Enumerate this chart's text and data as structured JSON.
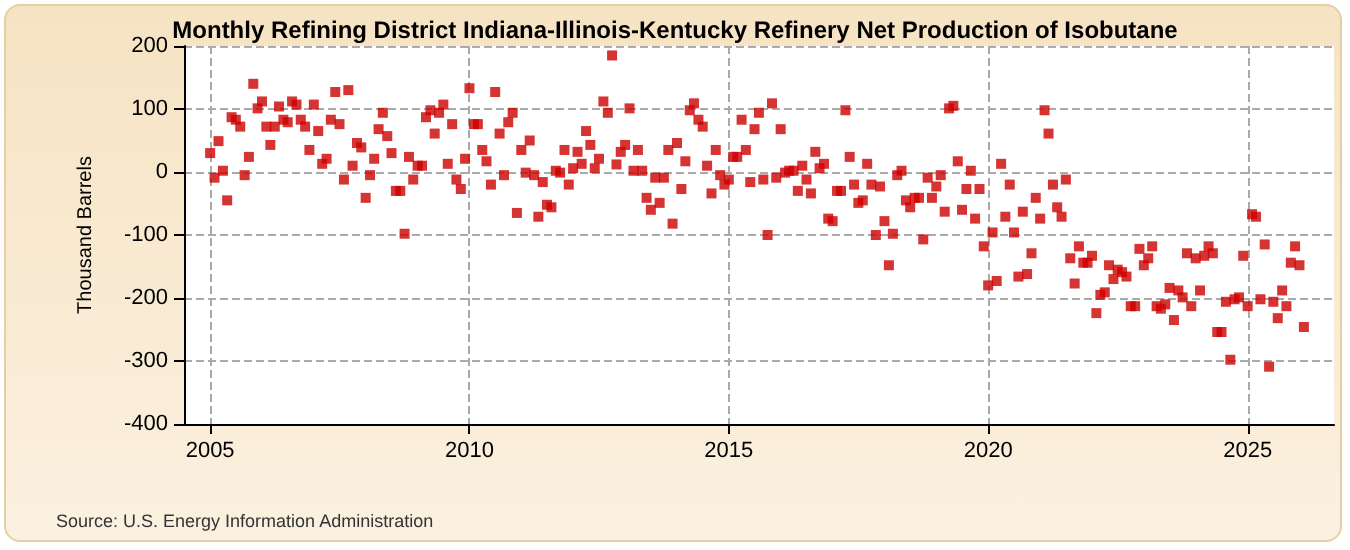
{
  "chart_data": {
    "type": "scatter",
    "title": "Monthly Refining District Indiana-Illinois-Kentucky Refinery Net Production of Isobutane",
    "ylabel": "Thousand Barrels",
    "annotations": [
      "Source: U.S. Energy Information Administration"
    ],
    "xlim": [
      "2004-07",
      "2026-09"
    ],
    "xticks": [
      "2005",
      "2010",
      "2015",
      "2020",
      "2025"
    ],
    "ylim": [
      -400,
      200
    ],
    "yticks": [
      -400,
      -300,
      -200,
      -100,
      0,
      100,
      200
    ],
    "grid": true,
    "marker": "square",
    "x": [
      "2005-01",
      "2005-02",
      "2005-03",
      "2005-04",
      "2005-05",
      "2005-06",
      "2005-07",
      "2005-08",
      "2005-09",
      "2005-10",
      "2005-11",
      "2005-12",
      "2006-01",
      "2006-02",
      "2006-03",
      "2006-04",
      "2006-05",
      "2006-06",
      "2006-07",
      "2006-08",
      "2006-09",
      "2006-10",
      "2006-11",
      "2006-12",
      "2007-01",
      "2007-02",
      "2007-03",
      "2007-04",
      "2007-05",
      "2007-06",
      "2007-07",
      "2007-08",
      "2007-09",
      "2007-10",
      "2007-11",
      "2007-12",
      "2008-01",
      "2008-02",
      "2008-03",
      "2008-04",
      "2008-05",
      "2008-06",
      "2008-07",
      "2008-08",
      "2008-09",
      "2008-10",
      "2008-11",
      "2008-12",
      "2009-01",
      "2009-02",
      "2009-03",
      "2009-04",
      "2009-05",
      "2009-06",
      "2009-07",
      "2009-08",
      "2009-09",
      "2009-10",
      "2009-11",
      "2009-12",
      "2010-01",
      "2010-02",
      "2010-03",
      "2010-04",
      "2010-05",
      "2010-06",
      "2010-07",
      "2010-08",
      "2010-09",
      "2010-10",
      "2010-11",
      "2010-12",
      "2011-01",
      "2011-02",
      "2011-03",
      "2011-04",
      "2011-05",
      "2011-06",
      "2011-07",
      "2011-08",
      "2011-09",
      "2011-10",
      "2011-11",
      "2011-12",
      "2012-01",
      "2012-02",
      "2012-03",
      "2012-04",
      "2012-05",
      "2012-06",
      "2012-07",
      "2012-08",
      "2012-09",
      "2012-10",
      "2012-11",
      "2012-12",
      "2013-01",
      "2013-02",
      "2013-03",
      "2013-04",
      "2013-05",
      "2013-06",
      "2013-07",
      "2013-08",
      "2013-09",
      "2013-10",
      "2013-11",
      "2013-12",
      "2014-01",
      "2014-02",
      "2014-03",
      "2014-04",
      "2014-05",
      "2014-06",
      "2014-07",
      "2014-08",
      "2014-09",
      "2014-10",
      "2014-11",
      "2014-12",
      "2015-01",
      "2015-02",
      "2015-03",
      "2015-04",
      "2015-05",
      "2015-06",
      "2015-07",
      "2015-08",
      "2015-09",
      "2015-10",
      "2015-11",
      "2015-12",
      "2016-01",
      "2016-02",
      "2016-03",
      "2016-04",
      "2016-05",
      "2016-06",
      "2016-07",
      "2016-08",
      "2016-09",
      "2016-10",
      "2016-11",
      "2016-12",
      "2017-01",
      "2017-02",
      "2017-03",
      "2017-04",
      "2017-05",
      "2017-06",
      "2017-07",
      "2017-08",
      "2017-09",
      "2017-10",
      "2017-11",
      "2017-12",
      "2018-01",
      "2018-02",
      "2018-03",
      "2018-04",
      "2018-05",
      "2018-06",
      "2018-07",
      "2018-08",
      "2018-09",
      "2018-10",
      "2018-11",
      "2018-12",
      "2019-01",
      "2019-02",
      "2019-03",
      "2019-04",
      "2019-05",
      "2019-06",
      "2019-07",
      "2019-08",
      "2019-09",
      "2019-10",
      "2019-11",
      "2019-12",
      "2020-01",
      "2020-02",
      "2020-03",
      "2020-04",
      "2020-05",
      "2020-06",
      "2020-07",
      "2020-08",
      "2020-09",
      "2020-10",
      "2020-11",
      "2020-12",
      "2021-01",
      "2021-02",
      "2021-03",
      "2021-04",
      "2021-05",
      "2021-06",
      "2021-07",
      "2021-08",
      "2021-09",
      "2021-10",
      "2021-11",
      "2021-12",
      "2022-01",
      "2022-02",
      "2022-03",
      "2022-04",
      "2022-05",
      "2022-06",
      "2022-07",
      "2022-08",
      "2022-09",
      "2022-10",
      "2022-11",
      "2022-12",
      "2023-01",
      "2023-02",
      "2023-03",
      "2023-04",
      "2023-05",
      "2023-06",
      "2023-07",
      "2023-08",
      "2023-09",
      "2023-10",
      "2023-11",
      "2023-12",
      "2024-01",
      "2024-02",
      "2024-03",
      "2024-04",
      "2024-05",
      "2024-06",
      "2024-07",
      "2024-08",
      "2024-09",
      "2024-10",
      "2024-11",
      "2024-12",
      "2025-01",
      "2025-02",
      "2025-03",
      "2025-04",
      "2025-05",
      "2025-06",
      "2025-07",
      "2025-08",
      "2025-09",
      "2025-10",
      "2025-11",
      "2025-12",
      "2026-01",
      "2026-02"
    ],
    "series": [
      {
        "color": "#cc0000",
        "values": [
          30,
          -9,
          49,
          2,
          -45,
          87,
          83,
          72,
          -5,
          24,
          140,
          101,
          112,
          72,
          43,
          72,
          104,
          83,
          79,
          112,
          107,
          83,
          72,
          35,
          107,
          65,
          13,
          21,
          83,
          127,
          76,
          -12,
          130,
          10,
          46,
          39,
          -41,
          -5,
          21,
          68,
          94,
          57,
          30,
          -30,
          -30,
          -98,
          24,
          -12,
          10,
          10,
          87,
          98,
          61,
          94,
          107,
          13,
          76,
          -12,
          -27,
          21,
          133,
          76,
          76,
          35,
          17,
          -20,
          127,
          61,
          -5,
          79,
          94,
          -65,
          35,
          -1,
          50,
          -5,
          -71,
          -16,
          -52,
          -56,
          2,
          -1,
          35,
          -20,
          6,
          32,
          13,
          65,
          43,
          6,
          21,
          112,
          94,
          185,
          12,
          32,
          43,
          101,
          2,
          35,
          2,
          -41,
          -60,
          -9,
          -49,
          -9,
          35,
          -82,
          46,
          -27,
          17,
          98,
          109,
          83,
          72,
          10,
          -34,
          35,
          -5,
          -20,
          -12,
          24,
          24,
          83,
          35,
          -16,
          68,
          94,
          -12,
          -100,
          109,
          -9,
          68,
          -1,
          2,
          2,
          -30,
          10,
          -12,
          -34,
          32,
          6,
          13,
          -74,
          -78,
          -30,
          -30,
          98,
          24,
          -20,
          -49,
          -45,
          13,
          -20,
          -100,
          -23,
          -78,
          -148,
          -98,
          -5,
          2,
          -45,
          -56,
          -41,
          -41,
          -107,
          -9,
          -41,
          -23,
          -5,
          -63,
          101,
          105,
          17,
          -60,
          -27,
          2,
          -74,
          -27,
          -118,
          -180,
          -96,
          -173,
          13,
          -71,
          -20,
          -96,
          -166,
          -63,
          -162,
          -129,
          -41,
          -74,
          98,
          61,
          -20,
          -56,
          -71,
          -12,
          -137,
          -177,
          -118,
          -144,
          -144,
          -133,
          -224,
          -195,
          -191,
          -148,
          -170,
          -155,
          -159,
          -166,
          -213,
          -213,
          -122,
          -148,
          -137,
          -118,
          -213,
          -217,
          -210,
          -184,
          -235,
          -188,
          -199,
          -129,
          -213,
          -137,
          -188,
          -133,
          -118,
          -129,
          -254,
          -254,
          -206,
          -298,
          -202,
          -199,
          -133,
          -213,
          -67,
          -71,
          -202,
          -115,
          -309,
          -206,
          -232,
          -188,
          -213,
          -144,
          -118,
          -148,
          -246
        ]
      }
    ]
  }
}
